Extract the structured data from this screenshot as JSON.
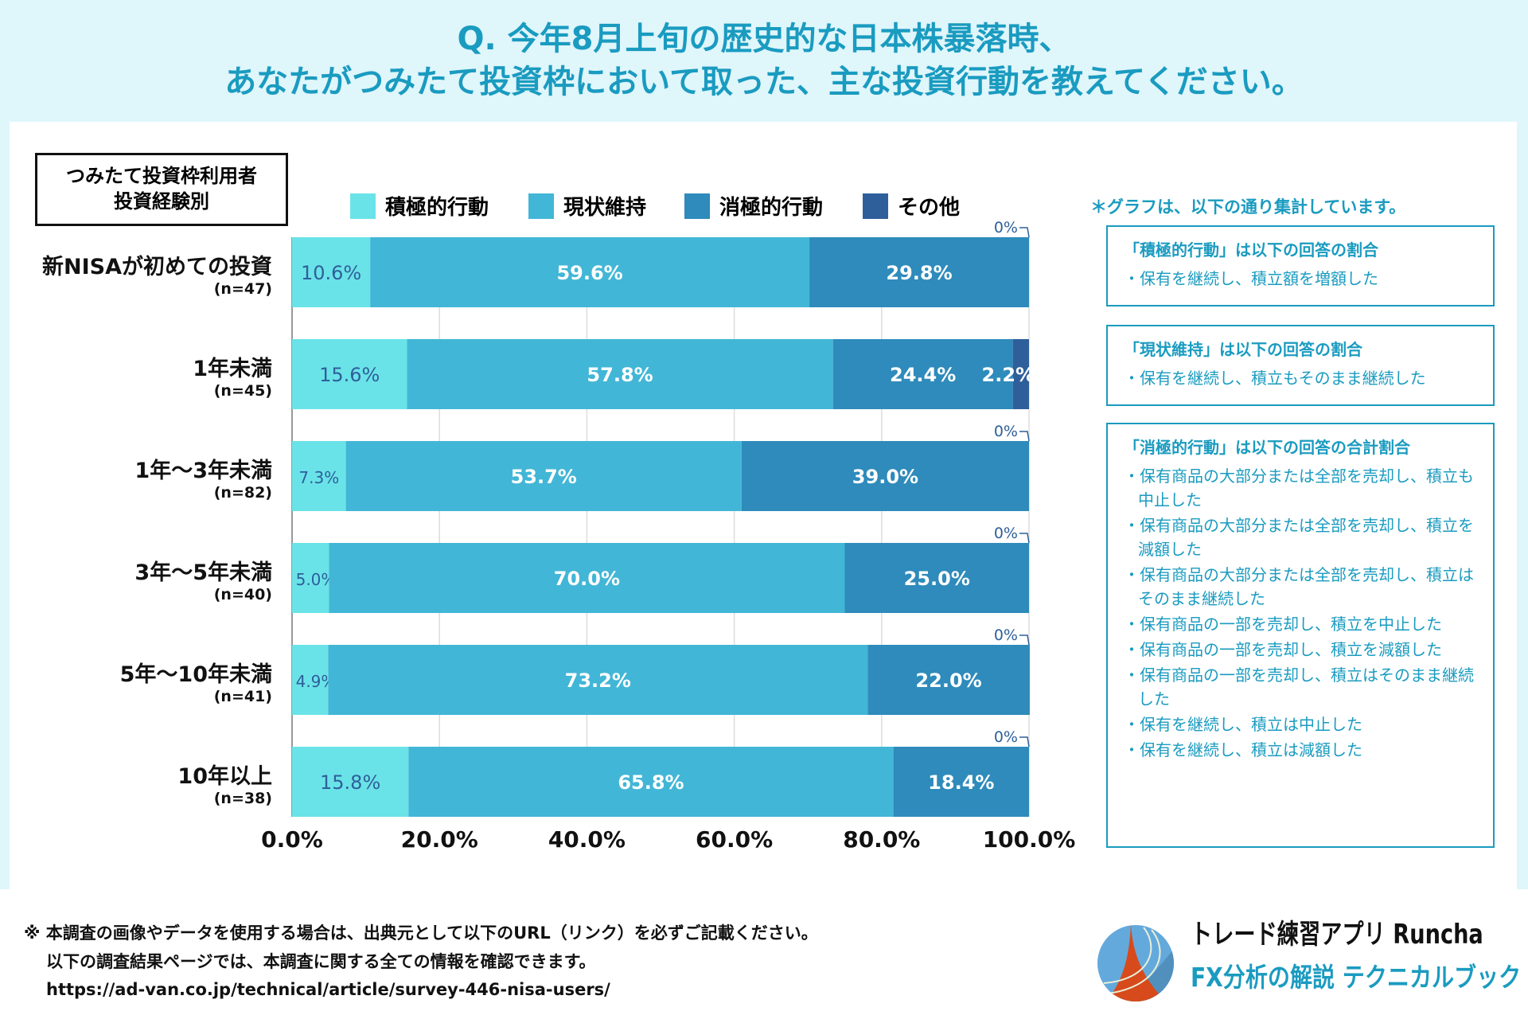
{
  "title": {
    "line1": "Q. 今年8月上旬の歴史的な日本株暴落時、",
    "line2": "あなたがつみたて投資枠において取った、主な投資行動を教えてください。"
  },
  "group_box": {
    "line1": "つみたて投資枠利用者",
    "line2": "投資経験別"
  },
  "chart_data": {
    "type": "bar",
    "orientation": "horizontal",
    "stacked": true,
    "categories": [
      {
        "label": "新NISAが初めての投資",
        "n": "(n=47)"
      },
      {
        "label": "1年未満",
        "n": "(n=45)"
      },
      {
        "label": "1年〜3年未満",
        "n": "(n=82)"
      },
      {
        "label": "3年〜5年未満",
        "n": "(n=40)"
      },
      {
        "label": "5年〜10年未満",
        "n": "(n=41)"
      },
      {
        "label": "10年以上",
        "n": "(n=38)"
      }
    ],
    "series": [
      {
        "name": "積極的行動",
        "color": "#6ae3e8",
        "values": [
          10.6,
          15.6,
          7.3,
          5.0,
          4.9,
          15.8
        ]
      },
      {
        "name": "現状維持",
        "color": "#42b6d6",
        "values": [
          59.6,
          57.8,
          53.7,
          70.0,
          73.2,
          65.8
        ]
      },
      {
        "name": "消極的行動",
        "color": "#2e8bbb",
        "values": [
          29.8,
          24.4,
          39.0,
          25.0,
          22.0,
          18.4
        ]
      },
      {
        "name": "その他",
        "color": "#2e5f9a",
        "values": [
          0,
          2.2,
          0,
          0,
          0,
          0
        ]
      }
    ],
    "xlim": [
      0,
      100
    ],
    "xticks": [
      "0.0%",
      "20.0%",
      "40.0%",
      "60.0%",
      "80.0%",
      "100.0%"
    ],
    "grid": true,
    "legend": "top"
  },
  "notes": {
    "header": "＊グラフは、以下の通り集計しています。",
    "boxes": [
      {
        "heading": "「積極的行動」は以下の回答の割合",
        "items": [
          "保有を継続し、積立額を増額した"
        ]
      },
      {
        "heading": "「現状維持」は以下の回答の割合",
        "items": [
          "保有を継続し、積立もそのまま継続した"
        ]
      },
      {
        "heading": "「消極的行動」は以下の回答の合計割合",
        "items": [
          "保有商品の大部分または全部を売却し、積立も中止した",
          "保有商品の大部分または全部を売却し、積立を減額した",
          "保有商品の大部分または全部を売却し、積立はそのまま継続した",
          "保有商品の一部を売却し、積立を中止した",
          "保有商品の一部を売却し、積立を減額した",
          "保有商品の一部を売却し、積立はそのまま継続した",
          "保有を継続し、積立は中止した",
          "保有を継続し、積立は減額した"
        ]
      }
    ]
  },
  "footer": {
    "line1": "※ 本調査の画像やデータを使用する場合は、出典元として以下のURL（リンク）を必ずご記載ください。",
    "line2": "以下の調査結果ページでは、本調査に関する全ての情報を確認できます。",
    "url": "https://ad-van.co.jp/technical/article/survey-446-nisa-users/"
  },
  "brand": {
    "line1": "トレード練習アプリ Runcha",
    "line2": "FX分析の解説 テクニカルブック"
  }
}
